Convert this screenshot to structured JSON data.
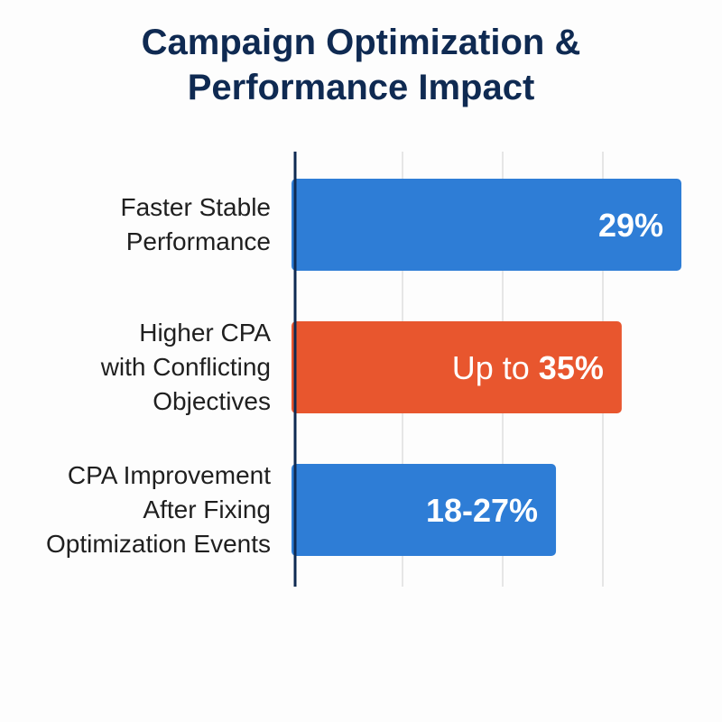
{
  "chart_data": {
    "type": "bar",
    "orientation": "horizontal",
    "title_lines": [
      "Campaign Optimization &",
      "Performance Impact"
    ],
    "categories": [
      [
        "Faster Stable",
        "Performance"
      ],
      [
        "Higher CPA",
        "with Conflicting",
        "Objectives"
      ],
      [
        "CPA Improvement",
        "After Fixing",
        "Optimization Events"
      ]
    ],
    "data_labels": [
      {
        "prefix": "",
        "value": "29%"
      },
      {
        "prefix": "Up to ",
        "value": "35%"
      },
      {
        "prefix": "",
        "value": "18-27%"
      }
    ],
    "values": [
      29,
      35,
      "18-27"
    ],
    "bar_levels": [
      0.964,
      0.815,
      0.651
    ],
    "colors": [
      "#2e7dd6",
      "#e8562e",
      "#2e7dd6"
    ],
    "grid": true,
    "axis_color": "#0f2a52",
    "grid_color": "#e6e6e6"
  }
}
